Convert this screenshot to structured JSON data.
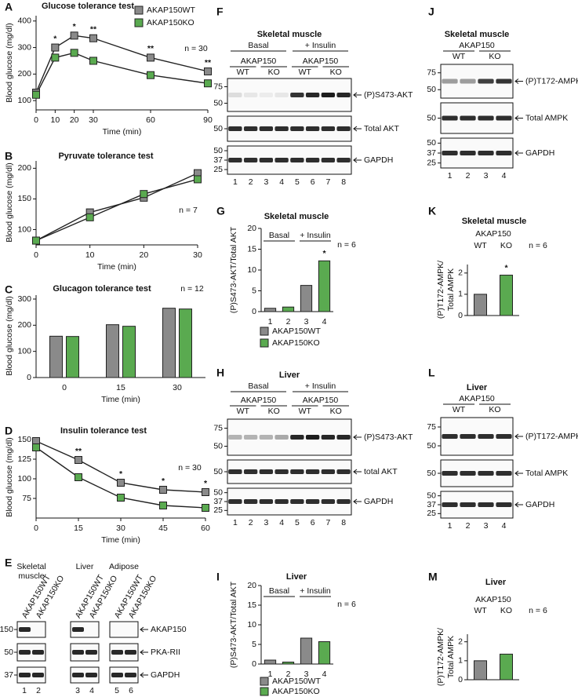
{
  "chart_data": [
    {
      "panel": "A",
      "type": "line",
      "title": "Glucose tolerance test",
      "xlabel": "Time (min)",
      "ylabel": "Blood glucose (mg/dl)",
      "x": [
        0,
        10,
        20,
        30,
        60,
        90
      ],
      "xlim": [
        0,
        90
      ],
      "xticks": [
        0,
        10,
        20,
        30,
        60,
        90
      ],
      "ylim": [
        65,
        420
      ],
      "yticks": [
        100,
        200,
        300,
        400
      ],
      "series": [
        {
          "name": "AKAP150WT",
          "color": "#8a8a8a",
          "values": [
            130,
            300,
            345,
            335,
            262,
            210
          ]
        },
        {
          "name": "AKAP150KO",
          "color": "#5aaa50",
          "values": [
            122,
            262,
            280,
            250,
            196,
            165
          ]
        }
      ],
      "legend": "upper right",
      "annotations": [
        {
          "x": 10,
          "text": "*"
        },
        {
          "x": 20,
          "text": "*"
        },
        {
          "x": 30,
          "text": "**"
        },
        {
          "x": 60,
          "text": "**"
        },
        {
          "x": 90,
          "text": "**"
        }
      ],
      "note": "n = 30"
    },
    {
      "panel": "B",
      "type": "line",
      "title": "Pyruvate tolerance test",
      "xlabel": "Time (min)",
      "ylabel": "Blood glucose (mg/dl)",
      "x": [
        0,
        10,
        20,
        30
      ],
      "xlim": [
        0,
        30
      ],
      "xticks": [
        0,
        10,
        20,
        30
      ],
      "ylim": [
        75,
        212
      ],
      "yticks": [
        100,
        150,
        200
      ],
      "series": [
        {
          "color": "#8a8a8a",
          "values": [
            82,
            128,
            152,
            192
          ]
        },
        {
          "color": "#5aaa50",
          "values": [
            82,
            120,
            158,
            182
          ]
        }
      ],
      "note": "n = 7"
    },
    {
      "panel": "C",
      "type": "bar",
      "title": "Glucagon tolerance test",
      "xlabel": "Time (min)",
      "ylabel": "Blood glucose (mg/dl)",
      "categories": [
        "0",
        "15",
        "30"
      ],
      "ylim": [
        0,
        315
      ],
      "yticks": [
        0,
        100,
        200,
        300
      ],
      "series": [
        {
          "color": "#8a8a8a",
          "values": [
            158,
            202,
            265
          ]
        },
        {
          "color": "#5aaa50",
          "values": [
            157,
            196,
            262
          ]
        }
      ],
      "note": "n = 12"
    },
    {
      "panel": "D",
      "type": "line",
      "title": "Insulin tolerance test",
      "xlabel": "Time (min)",
      "ylabel": "Blood glucose (mg/dl)",
      "x": [
        0,
        15,
        30,
        45,
        60
      ],
      "xlim": [
        0,
        60
      ],
      "xticks": [
        0,
        15,
        30,
        45,
        60
      ],
      "ylim": [
        50,
        153
      ],
      "yticks": [
        75,
        100,
        125,
        150
      ],
      "series": [
        {
          "color": "#8a8a8a",
          "values": [
            148,
            124,
            95,
            86,
            83
          ]
        },
        {
          "color": "#5aaa50",
          "values": [
            140,
            102,
            76,
            66,
            63
          ]
        }
      ],
      "annotations": [
        {
          "x": 15,
          "text": "**"
        },
        {
          "x": 30,
          "text": "*"
        },
        {
          "x": 45,
          "text": "*"
        },
        {
          "x": 60,
          "text": "*"
        }
      ],
      "note": "n = 30"
    },
    {
      "panel": "G",
      "type": "bar",
      "title": "Skeletal muscle",
      "ylabel": "(P)S473-AKT/Total AKT",
      "categories": [
        "1",
        "2",
        "3",
        "4"
      ],
      "groups": [
        "Basal",
        "+ Insulin"
      ],
      "ylim": [
        0,
        20
      ],
      "yticks": [
        0,
        5,
        10,
        15,
        20
      ],
      "series": [
        {
          "name": "AKAP150WT",
          "color": "#8a8a8a",
          "values": [
            0.8,
            null,
            6.3,
            null
          ]
        },
        {
          "name": "AKAP150KO",
          "color": "#5aaa50",
          "values": [
            null,
            1.1,
            null,
            12.2
          ]
        }
      ],
      "legend": "below",
      "annotations": [
        {
          "category": "4",
          "text": "*"
        }
      ],
      "note": "n = 6"
    },
    {
      "panel": "I",
      "type": "bar",
      "title": "Liver",
      "ylabel": "(P)S473-AKT/Total AKT",
      "categories": [
        "1",
        "2",
        "3",
        "4"
      ],
      "groups": [
        "Basal",
        "+ Insulin"
      ],
      "ylim": [
        0,
        20
      ],
      "yticks": [
        0,
        5,
        10,
        15,
        20
      ],
      "series": [
        {
          "name": "AKAP150WT",
          "color": "#8a8a8a",
          "values": [
            1.0,
            null,
            6.6,
            null
          ]
        },
        {
          "name": "AKAP150KO",
          "color": "#5aaa50",
          "values": [
            null,
            0.5,
            null,
            5.7
          ]
        }
      ],
      "legend": "below",
      "note": "n = 6"
    },
    {
      "panel": "K",
      "type": "bar",
      "title": "Skeletal muscle",
      "header": "AKAP150",
      "ylabel": [
        "(P)T172-AMPK/",
        "Total AMPK"
      ],
      "categories": [
        "WT",
        "KO"
      ],
      "values": [
        1.0,
        1.9
      ],
      "colors": [
        "#8a8a8a",
        "#5aaa50"
      ],
      "ylim": [
        0,
        2.4
      ],
      "yticks": [
        0,
        1,
        2
      ],
      "annotations": [
        {
          "category": "KO",
          "text": "*"
        }
      ],
      "note": "n = 6"
    },
    {
      "panel": "M",
      "type": "bar",
      "title": "Liver",
      "header": "AKAP150",
      "ylabel": [
        "(P)T172-AMPK/",
        "Total AMPK"
      ],
      "categories": [
        "WT",
        "KO"
      ],
      "values": [
        1.0,
        1.35
      ],
      "colors": [
        "#8a8a8a",
        "#5aaa50"
      ],
      "ylim": [
        0,
        2.4
      ],
      "yticks": [
        0,
        1,
        2
      ],
      "note": "n = 6"
    }
  ],
  "blots": [
    {
      "panel": "E",
      "tissues": [
        [
          "Skeletal",
          "muscle"
        ],
        [
          "Liver"
        ],
        [
          "Adipose"
        ]
      ],
      "genotypes": [
        "AKAP150WT",
        "AKAP150KO"
      ],
      "rows": [
        {
          "marker": 150,
          "label": "AKAP150"
        },
        {
          "marker": 50,
          "label": "PKA-RII"
        },
        {
          "marker": 37,
          "label": "GAPDH"
        }
      ],
      "lanes": [
        "1",
        "2",
        "3",
        "4",
        "5",
        "6"
      ]
    },
    {
      "panel": "F",
      "title": "Skeletal muscle",
      "groups": [
        "Basal",
        "+ Insulin"
      ],
      "header": [
        "AKAP150",
        "AKAP150"
      ],
      "genotypes": [
        "WT",
        "KO",
        "WT",
        "KO"
      ],
      "rows": [
        {
          "markers": [
            75,
            50
          ],
          "label": "(P)S473-AKT"
        },
        {
          "markers": [
            50
          ],
          "label": "Total AKT"
        },
        {
          "markers": [
            50,
            37,
            25
          ],
          "label": "GAPDH"
        }
      ],
      "lanes": [
        "1",
        "2",
        "3",
        "4",
        "5",
        "6",
        "7",
        "8"
      ]
    },
    {
      "panel": "H",
      "title": "Liver",
      "groups": [
        "Basal",
        "+ Insulin"
      ],
      "header": [
        "AKAP150",
        "AKAP150"
      ],
      "genotypes": [
        "WT",
        "KO",
        "WT",
        "KO"
      ],
      "rows": [
        {
          "markers": [
            75,
            50
          ],
          "label": "(P)S473-AKT"
        },
        {
          "markers": [
            50
          ],
          "label": "total AKT"
        },
        {
          "markers": [
            50,
            37,
            25
          ],
          "label": "GAPDH"
        }
      ],
      "lanes": [
        "1",
        "2",
        "3",
        "4",
        "5",
        "6",
        "7",
        "8"
      ]
    },
    {
      "panel": "J",
      "title": "Skeletal muscle",
      "header": [
        "AKAP150"
      ],
      "genotypes": [
        "WT",
        "KO"
      ],
      "rows": [
        {
          "markers": [
            75,
            50
          ],
          "label": "(P)T172-AMPK"
        },
        {
          "markers": [
            50
          ],
          "label": "Total AMPK"
        },
        {
          "markers": [
            50,
            37,
            25
          ],
          "label": "GAPDH"
        }
      ],
      "lanes": [
        "1",
        "2",
        "3",
        "4"
      ]
    },
    {
      "panel": "L",
      "title": "Liver",
      "header": [
        "AKAP150"
      ],
      "genotypes": [
        "WT",
        "KO"
      ],
      "rows": [
        {
          "markers": [
            75,
            50
          ],
          "label": "(P)T172-AMPK"
        },
        {
          "markers": [
            50
          ],
          "label": "Total AMPK"
        },
        {
          "markers": [
            50,
            37,
            25
          ],
          "label": "GAPDH"
        }
      ],
      "lanes": [
        "1",
        "2",
        "3",
        "4"
      ]
    }
  ]
}
